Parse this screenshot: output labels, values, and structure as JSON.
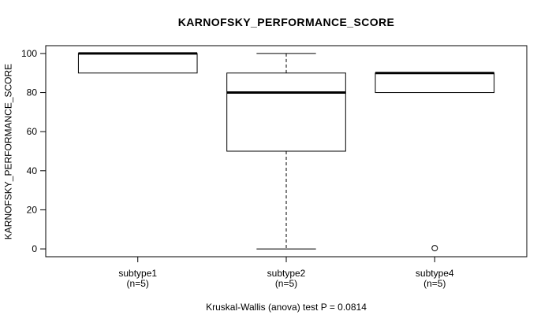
{
  "chart_data": {
    "type": "boxplot",
    "title": "KARNOFSKY_PERFORMANCE_SCORE",
    "ylabel": "KARNOFSKY_PERFORMANCE_SCORE",
    "xlabel": "",
    "ylim": [
      0,
      100
    ],
    "yticks": [
      0,
      20,
      40,
      60,
      80,
      100
    ],
    "grid": false,
    "legend": "none",
    "annotation": "Kruskal-Wallis (anova) test P = 0.0814",
    "groups": [
      {
        "label": "subtype1",
        "sublabel": "(n=5)",
        "q1": 90,
        "median": 100,
        "q3": 100,
        "whisker_low": 90,
        "whisker_high": 100,
        "outliers": []
      },
      {
        "label": "subtype2",
        "sublabel": "(n=5)",
        "q1": 50,
        "median": 80,
        "q3": 90,
        "whisker_low": 0,
        "whisker_high": 100,
        "outliers": []
      },
      {
        "label": "subtype4",
        "sublabel": "(n=5)",
        "q1": 80,
        "median": 90,
        "q3": 90,
        "whisker_low": 80,
        "whisker_high": 90,
        "outliers": [
          0
        ]
      }
    ],
    "colors": {
      "line": "#000000",
      "box_fill": "#ffffff",
      "background": "#ffffff"
    }
  }
}
